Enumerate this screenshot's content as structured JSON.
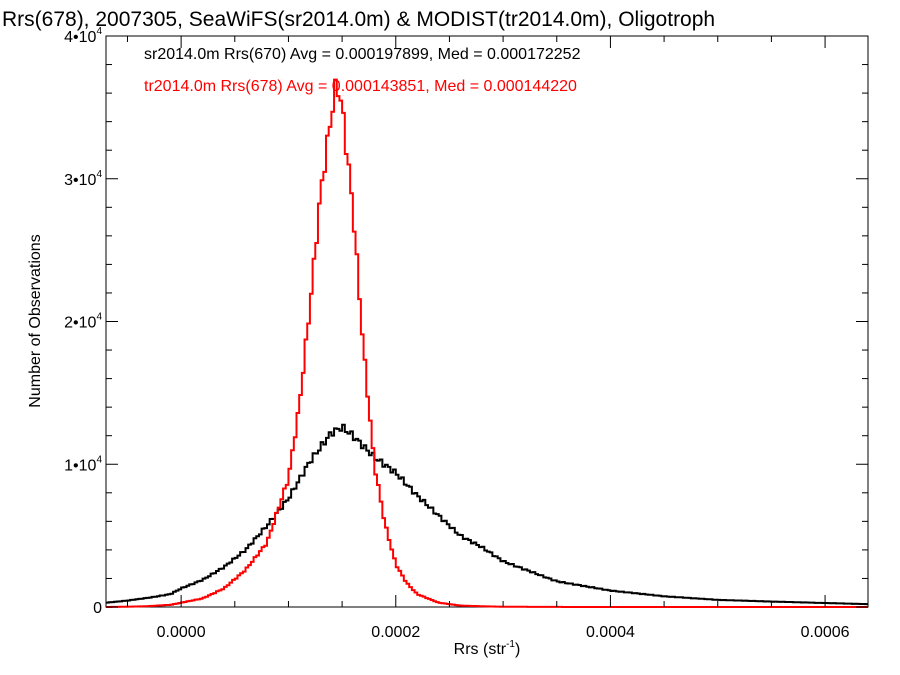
{
  "chart_data": {
    "type": "histogram",
    "title": "Rrs(678), 2007305, SeaWiFS(sr2014.0m) & MODIST(tr2014.0m), Oligotroph",
    "xlabel": "Rrs (str",
    "xlabel_sup": "-1",
    "xlabel_end": ")",
    "ylabel": "Number of Observations",
    "xlim": [
      -7e-05,
      0.00064
    ],
    "ylim": [
      0,
      40000
    ],
    "x_ticks": [
      0.0,
      0.0002,
      0.0004,
      0.0006
    ],
    "x_tick_labels": [
      "0.0000",
      "0.0002",
      "0.0004",
      "0.0006"
    ],
    "y_ticks": [
      0,
      10000,
      20000,
      30000,
      40000
    ],
    "y_tick_labels": [
      {
        "value": 0,
        "base": "0",
        "exp": ""
      },
      {
        "value": 10000,
        "base": "1•10",
        "exp": "4"
      },
      {
        "value": 20000,
        "base": "2•10",
        "exp": "4"
      },
      {
        "value": 30000,
        "base": "3•10",
        "exp": "4"
      },
      {
        "value": 40000,
        "base": "4•10",
        "exp": "4"
      }
    ],
    "grid": false,
    "legend_position": "top-left",
    "bin_width": 2.5e-06,
    "series": [
      {
        "name": "sr2014.0m Rrs(670) Avg = 0.000197899, Med = 0.000172252",
        "color": "#000000",
        "peak_x": 0.000145,
        "x": [
          -7e-05,
          -5e-05,
          -3e-05,
          -1e-05,
          0.0,
          2e-05,
          4e-05,
          6e-05,
          8e-05,
          0.0001,
          0.00012,
          0.00014,
          0.00015,
          0.00016,
          0.00018,
          0.0002,
          0.00022,
          0.00024,
          0.00026,
          0.00028,
          0.0003,
          0.00035,
          0.0004,
          0.00045,
          0.0005,
          0.00055,
          0.0006,
          0.00064
        ],
        "y": [
          300,
          450,
          650,
          900,
          1300,
          1900,
          2800,
          4000,
          5700,
          7600,
          10200,
          12200,
          12600,
          12000,
          10500,
          9400,
          7800,
          6400,
          5000,
          4200,
          3200,
          1800,
          1150,
          750,
          500,
          380,
          280,
          200
        ]
      },
      {
        "name": "tr2014.0m Rrs(678) Avg = 0.000143851, Med = 0.000144220",
        "color": "#ff0000",
        "peak_x": 0.000145,
        "x": [
          -7e-05,
          -5e-05,
          -3e-05,
          -1e-05,
          0.0,
          2e-05,
          4e-05,
          6e-05,
          8e-05,
          0.0001,
          0.00011,
          0.00012,
          0.00013,
          0.00014,
          0.000145,
          0.00015,
          0.00016,
          0.00017,
          0.00018,
          0.00019,
          0.0002,
          0.00021,
          0.00022,
          0.00024,
          0.00026,
          0.00028,
          0.0003,
          0.00035,
          0.0004,
          0.0005,
          0.0006,
          0.00064
        ],
        "y": [
          0,
          20,
          60,
          150,
          300,
          600,
          1300,
          2600,
          4500,
          9000,
          14000,
          21000,
          29000,
          34500,
          36800,
          35000,
          28000,
          18000,
          10000,
          5800,
          3000,
          1700,
          900,
          300,
          100,
          50,
          20,
          5,
          0,
          0,
          0,
          0
        ]
      }
    ]
  }
}
